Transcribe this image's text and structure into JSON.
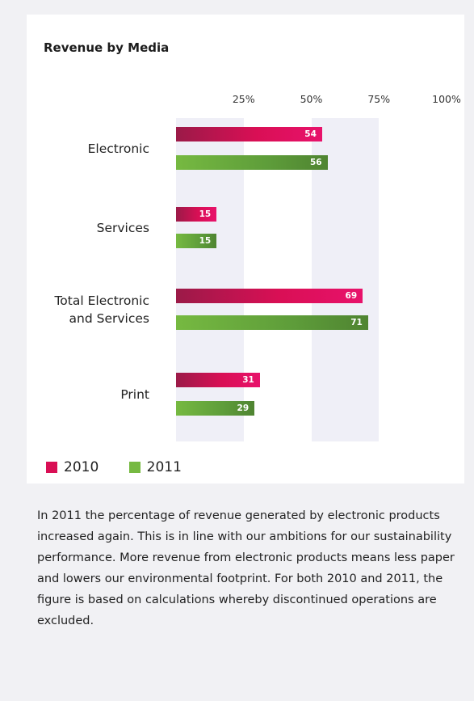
{
  "chart_data": {
    "type": "bar",
    "orientation": "horizontal",
    "title": "Revenue by Media",
    "categories": [
      "Electronic",
      "Services",
      "Total Electronic and Services",
      "Print"
    ],
    "category_lines": [
      [
        "Electronic"
      ],
      [
        "Services"
      ],
      [
        "Total Electronic",
        "and Services"
      ],
      [
        "Print"
      ]
    ],
    "series": [
      {
        "name": "2010",
        "values": [
          54,
          15,
          69,
          31
        ],
        "color": "#d90f55"
      },
      {
        "name": "2011",
        "values": [
          56,
          15,
          71,
          29
        ],
        "color": "#76b941"
      }
    ],
    "xticks": [
      "25%",
      "50%",
      "75%",
      "100%"
    ],
    "xlim": [
      0,
      100
    ],
    "legend_position": "bottom-left",
    "grid": "alternating bands"
  },
  "caption": "In 2011 the percentage of revenue generated by electronic products increased again. This is in line with our ambitions for our sustainability performance. More revenue from electronic products means less paper and lowers our environmental footprint. For both 2010 and 2011, the figure is based on calculations whereby discontinued operations are excluded."
}
